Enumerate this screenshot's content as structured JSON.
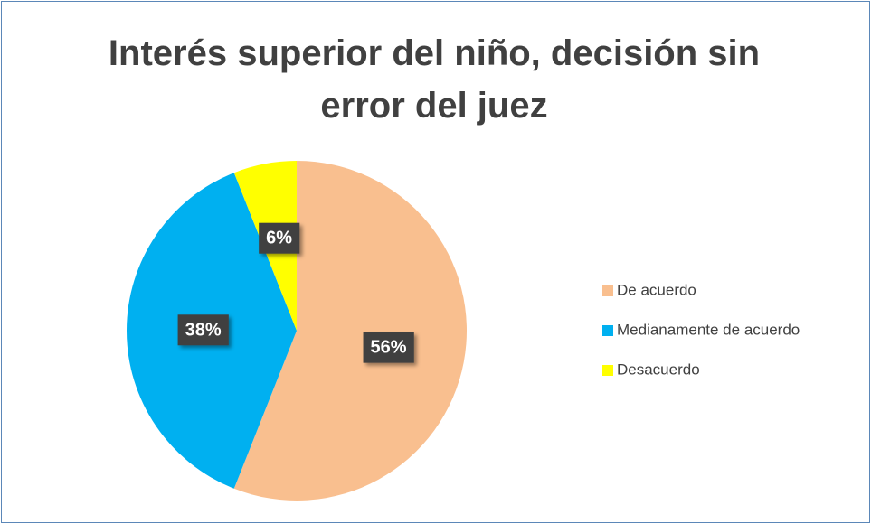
{
  "chart_data": {
    "type": "pie",
    "title": "Interés superior del niño, decisión sin error del juez",
    "categories": [
      "De acuerdo",
      "Medianamente de acuerdo",
      "Desacuerdo"
    ],
    "values": [
      56,
      38,
      6
    ],
    "value_labels": [
      "56%",
      "38%",
      "6%"
    ],
    "colors": [
      "#f9bf8f",
      "#00b0f0",
      "#ffff00"
    ],
    "legend": "right"
  }
}
